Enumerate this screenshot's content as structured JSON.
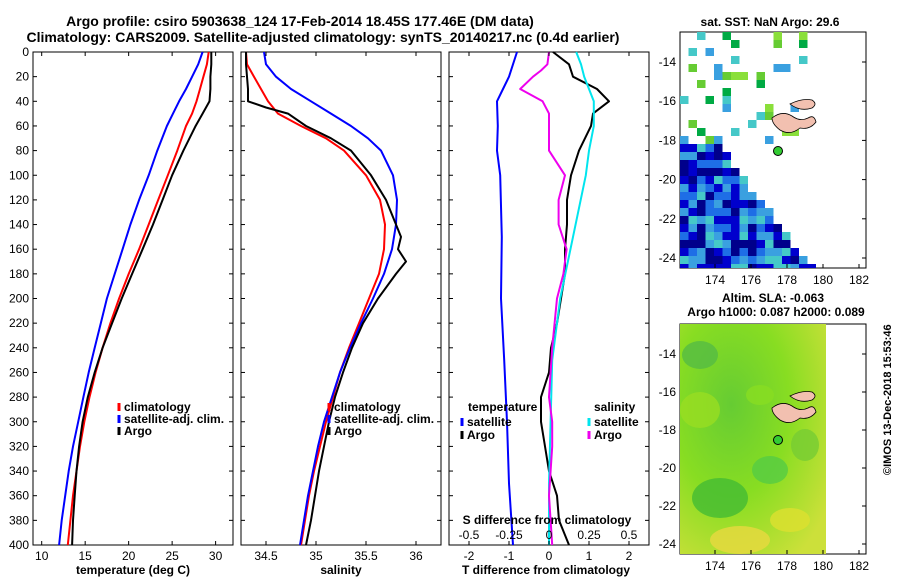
{
  "title": {
    "line1": "Argo profile: csiro 5903638_124 17-Feb-2014 18.45S 177.46E (DM data)",
    "line2": "Climatology: CARS2009. Satellite-adjusted climatology: synTS_20140217.nc (0.4d earlier)"
  },
  "colors": {
    "climatology": "#ff0000",
    "satellite": "#0000ff",
    "argo": "#000000",
    "sal_satellite": "#00e5ee",
    "sal_argo": "#ee00ee"
  },
  "depth_ticks": [
    "0",
    "20",
    "40",
    "60",
    "80",
    "100",
    "120",
    "140",
    "160",
    "180",
    "200",
    "220",
    "240",
    "260",
    "280",
    "300",
    "320",
    "340",
    "360",
    "380",
    "400"
  ],
  "legend": {
    "climatology": "climatology",
    "satellite_adj": "satellite-adj. clim.",
    "argo": "Argo",
    "temperature": "temperature",
    "salinity": "salinity",
    "satellite": "satellite"
  },
  "chart_data": [
    {
      "type": "line",
      "id": "temperature",
      "xlabel": "temperature (deg C)",
      "xlim": [
        9,
        32
      ],
      "ylim": [
        0,
        400
      ],
      "xticks": [
        10,
        15,
        20,
        25,
        30
      ],
      "series": [
        {
          "name": "climatology",
          "depth": [
            0,
            10,
            20,
            30,
            40,
            50,
            60,
            80,
            100,
            120,
            140,
            160,
            180,
            200,
            220,
            240,
            260,
            280,
            300,
            320,
            340,
            360,
            380,
            400
          ],
          "values": [
            29.2,
            29.0,
            28.6,
            28.2,
            27.8,
            27.3,
            26.6,
            25.6,
            24.5,
            23.4,
            22.3,
            21.2,
            20.0,
            18.9,
            17.9,
            17.0,
            16.2,
            15.5,
            14.9,
            14.4,
            14.0,
            13.6,
            13.3,
            13.0
          ]
        },
        {
          "name": "satellite-adj. clim.",
          "depth": [
            0,
            10,
            20,
            30,
            40,
            50,
            60,
            80,
            100,
            120,
            140,
            160,
            180,
            200,
            220,
            240,
            260,
            280,
            300,
            320,
            340,
            360,
            380,
            400
          ],
          "values": [
            28.5,
            28.0,
            27.3,
            26.6,
            25.8,
            25.1,
            24.4,
            23.3,
            22.3,
            21.2,
            20.2,
            19.3,
            18.4,
            17.5,
            16.8,
            16.1,
            15.4,
            14.8,
            14.2,
            13.6,
            13.1,
            12.7,
            12.3,
            12.0
          ]
        },
        {
          "name": "Argo",
          "depth": [
            0,
            10,
            20,
            30,
            40,
            50,
            60,
            80,
            100,
            120,
            140,
            160,
            180,
            200,
            220,
            240,
            260,
            280,
            300,
            320,
            340,
            360,
            380,
            400
          ],
          "values": [
            29.5,
            29.5,
            29.4,
            29.4,
            29.3,
            28.5,
            27.7,
            26.3,
            25.0,
            23.9,
            22.8,
            21.6,
            20.4,
            19.2,
            18.1,
            17.0,
            16.1,
            15.3,
            14.7,
            14.3,
            14.0,
            13.8,
            13.6,
            13.5
          ]
        }
      ]
    },
    {
      "type": "line",
      "id": "salinity",
      "xlabel": "salinity",
      "xlim": [
        34.25,
        36.25
      ],
      "ylim": [
        0,
        400
      ],
      "xticks": [
        34.5,
        35,
        35.5,
        36
      ],
      "series": [
        {
          "name": "climatology",
          "depth": [
            0,
            10,
            20,
            30,
            40,
            50,
            60,
            70,
            80,
            100,
            120,
            140,
            160,
            180,
            200,
            220,
            240,
            260,
            280,
            300,
            320,
            340,
            360,
            380,
            400
          ],
          "values": [
            34.3,
            34.31,
            34.38,
            34.45,
            34.52,
            34.62,
            34.85,
            35.1,
            35.28,
            35.5,
            35.64,
            35.69,
            35.68,
            35.63,
            35.53,
            35.43,
            35.33,
            35.24,
            35.17,
            35.1,
            35.04,
            34.98,
            34.93,
            34.89,
            34.85
          ]
        },
        {
          "name": "satellite-adj. clim.",
          "depth": [
            0,
            10,
            20,
            30,
            40,
            50,
            60,
            70,
            80,
            100,
            120,
            140,
            160,
            180,
            200,
            220,
            240,
            260,
            280,
            300,
            320,
            340,
            360,
            380,
            400
          ],
          "values": [
            34.48,
            34.5,
            34.6,
            34.75,
            34.95,
            35.15,
            35.35,
            35.52,
            35.65,
            35.77,
            35.81,
            35.8,
            35.76,
            35.68,
            35.57,
            35.45,
            35.34,
            35.24,
            35.16,
            35.08,
            35.02,
            34.97,
            34.92,
            34.88,
            34.84
          ]
        },
        {
          "name": "Argo",
          "depth": [
            0,
            10,
            20,
            30,
            40,
            45,
            50,
            60,
            70,
            80,
            100,
            120,
            140,
            150,
            160,
            170,
            180,
            200,
            220,
            240,
            260,
            280,
            300,
            320,
            340,
            360,
            380,
            400
          ],
          "values": [
            34.3,
            34.3,
            34.31,
            34.32,
            34.32,
            34.5,
            34.72,
            34.9,
            35.15,
            35.35,
            35.55,
            35.7,
            35.8,
            35.85,
            35.82,
            35.9,
            35.8,
            35.62,
            35.47,
            35.36,
            35.27,
            35.19,
            35.13,
            35.08,
            35.03,
            34.99,
            34.95,
            34.9
          ]
        }
      ]
    },
    {
      "type": "line",
      "id": "difference",
      "xlabel": "T difference from climatology",
      "xlabel_top": "S difference from climatology",
      "xlim": [
        -2.5,
        2.5
      ],
      "ylim": [
        0,
        400
      ],
      "xticks": [
        -2,
        -1,
        0,
        1,
        2
      ],
      "xticks_top": [
        "-0.5",
        "-0.25",
        "0",
        "0.25",
        "0.5"
      ],
      "series": [
        {
          "name": "temperature satellite",
          "depth": [
            0,
            10,
            20,
            30,
            40,
            60,
            80,
            100,
            150,
            200,
            250,
            300,
            350,
            400
          ],
          "values": [
            -0.8,
            -0.9,
            -1.0,
            -1.15,
            -1.3,
            -1.28,
            -1.3,
            -1.22,
            -1.18,
            -1.2,
            -1.12,
            -1.05,
            -1.0,
            -0.9
          ]
        },
        {
          "name": "temperature Argo",
          "depth": [
            0,
            10,
            20,
            30,
            40,
            50,
            60,
            80,
            100,
            120,
            140,
            160,
            180,
            200,
            220,
            240,
            260,
            280,
            300,
            320,
            340,
            360,
            380,
            400
          ],
          "values": [
            0.1,
            0.5,
            0.6,
            1.2,
            1.5,
            1.1,
            1.05,
            0.75,
            0.55,
            0.45,
            0.45,
            0.4,
            0.4,
            0.3,
            0.2,
            0.05,
            0.0,
            -0.2,
            -0.2,
            -0.1,
            0.0,
            0.2,
            0.25,
            0.5
          ]
        },
        {
          "name": "salinity satellite",
          "depth": [
            0,
            10,
            20,
            40,
            60,
            80,
            100,
            150,
            200,
            250,
            300,
            350,
            400
          ],
          "values": [
            0.17,
            0.2,
            0.22,
            0.28,
            0.28,
            0.25,
            0.23,
            0.15,
            0.07,
            0.02,
            0.01,
            0.0,
            0.0
          ]
        },
        {
          "name": "salinity Argo",
          "depth": [
            0,
            10,
            15,
            20,
            30,
            40,
            50,
            60,
            80,
            100,
            120,
            140,
            160,
            180,
            200,
            240,
            280,
            300,
            320,
            360,
            400
          ],
          "values": [
            0.0,
            -0.01,
            -0.05,
            -0.1,
            -0.18,
            -0.04,
            0.0,
            0.0,
            0.0,
            0.1,
            0.06,
            0.06,
            0.11,
            0.09,
            0.05,
            0.02,
            0.0,
            0.02,
            0.02,
            0.0,
            0.02
          ]
        }
      ]
    }
  ],
  "map_sst": {
    "title": "sat. SST: NaN Argo: 29.6",
    "yticks": [
      "-14",
      "-16",
      "-18",
      "-20",
      "-22",
      "-24"
    ],
    "xticks": [
      "174",
      "176",
      "178",
      "180",
      "182"
    ]
  },
  "map_sla": {
    "title1": "Altim. SLA: -0.063",
    "title2": "Argo h1000: 0.087 h2000: 0.089",
    "yticks": [
      "-14",
      "-16",
      "-18",
      "-20",
      "-22",
      "-24"
    ],
    "xticks": [
      "174",
      "176",
      "178",
      "180",
      "182"
    ]
  },
  "watermark": "©IMOS 13-Dec-2018 15:53:46"
}
